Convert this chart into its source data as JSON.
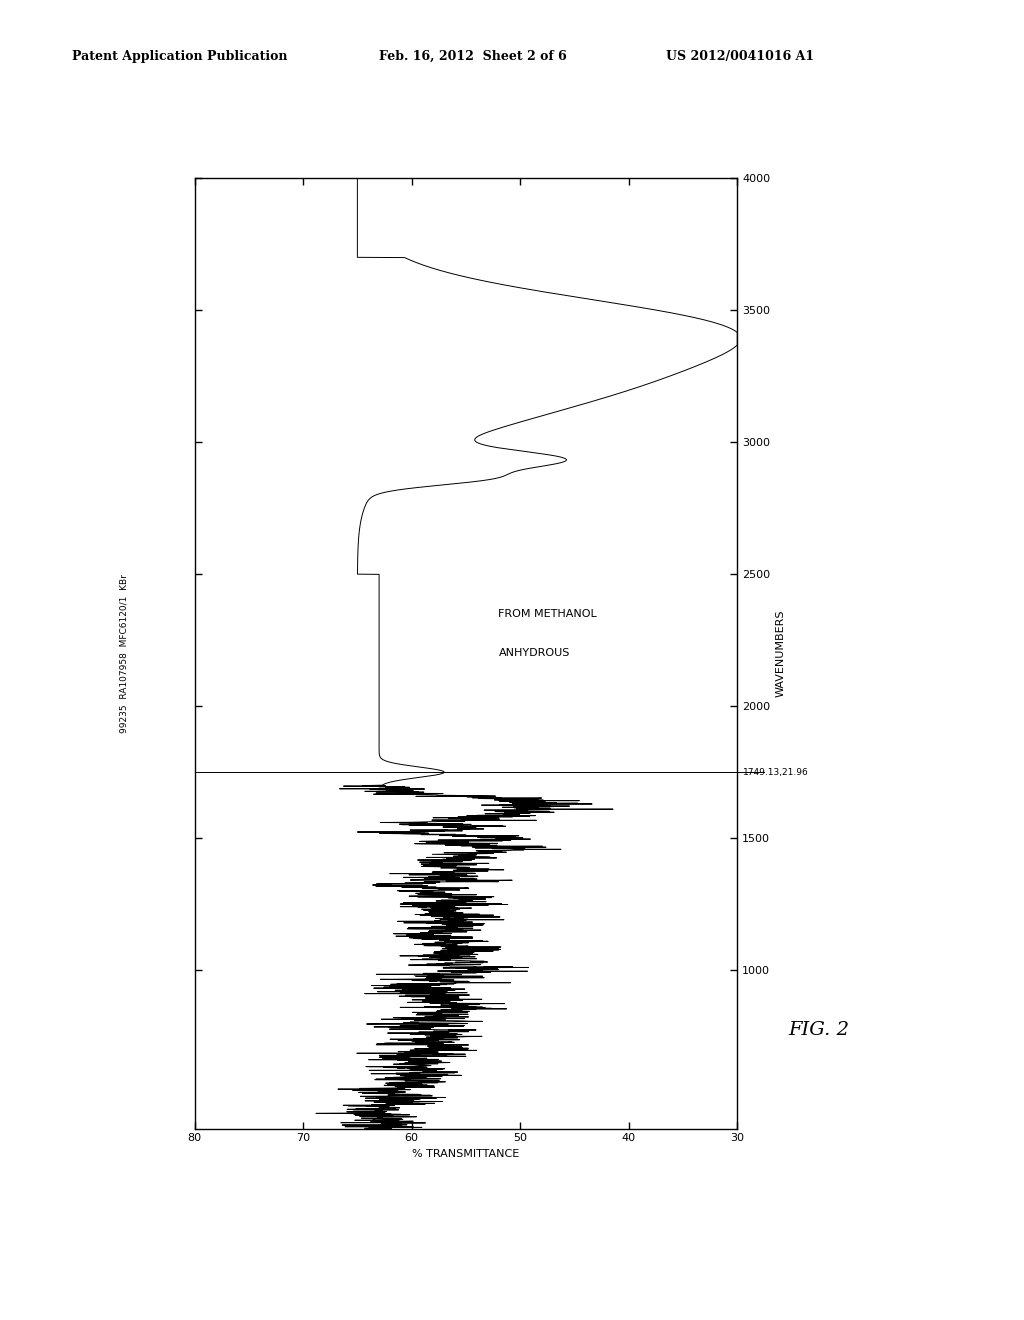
{
  "title_header": "Patent Application Publication",
  "date_header": "Feb. 16, 2012  Sheet 2 of 6",
  "patent_header": "US 2012/0041016 A1",
  "figure_label": "FIG. 2",
  "annotation_line1": "ANHYDROUS",
  "annotation_line2": "FROM METHANOL",
  "left_label": "99235  RA107958  MFC6120/1  KBr",
  "wavenumber_marker": "1749.13,21.96",
  "xlabel": "WAVENUMBERS",
  "ylabel": "% TRANSMITTANCE",
  "xlim": [
    80,
    30
  ],
  "ylim": [
    400,
    4000
  ],
  "ytick_vals": [
    1000,
    1500,
    2000,
    2500,
    3000,
    3500,
    4000
  ],
  "xtick_vals": [
    80,
    70,
    60,
    50,
    40,
    30
  ],
  "background_color": "#ffffff",
  "line_color": "#000000",
  "header_fontsize": 9,
  "axis_fontsize": 8,
  "fig_label_fontsize": 14
}
